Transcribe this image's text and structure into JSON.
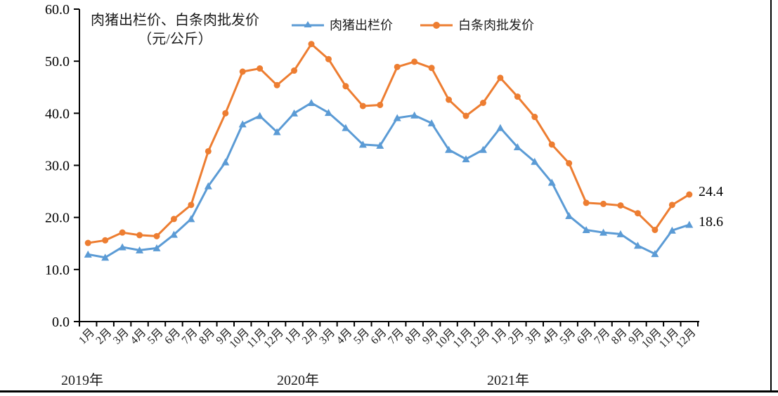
{
  "chart_data": {
    "type": "line",
    "title": "肉猪出栏价、白条肉批发价",
    "title_unit": "（元/公斤）",
    "x": [
      "1月",
      "2月",
      "3月",
      "4月",
      "5月",
      "6月",
      "7月",
      "8月",
      "9月",
      "10月",
      "11月",
      "12月",
      "1月",
      "2月",
      "3月",
      "4月",
      "5月",
      "6月",
      "7月",
      "8月",
      "9月",
      "10月",
      "11月",
      "12月",
      "1月",
      "2月",
      "3月",
      "4月",
      "5月",
      "6月",
      "7月",
      "8月",
      "9月",
      "10月",
      "11月",
      "12月"
    ],
    "year_labels": [
      "2019年",
      "2020年",
      "2021年"
    ],
    "yticks": [
      "0.0",
      "10.0",
      "20.0",
      "30.0",
      "40.0",
      "50.0",
      "60.0"
    ],
    "ylim": [
      0,
      60
    ],
    "grid": false,
    "legend_position": "top",
    "series": [
      {
        "name": "肉猪出栏价",
        "color": "#5B9BD5",
        "marker": "triangle",
        "end_label": "18.6",
        "values": [
          12.9,
          12.3,
          14.3,
          13.7,
          14.1,
          16.7,
          19.7,
          26.0,
          30.6,
          37.9,
          39.5,
          36.4,
          40.0,
          42.0,
          40.1,
          37.2,
          34.0,
          33.8,
          39.1,
          39.6,
          38.1,
          33.0,
          31.2,
          33.0,
          37.2,
          33.5,
          30.7,
          26.7,
          20.3,
          17.6,
          17.1,
          16.8,
          14.6,
          13.0,
          17.5,
          18.6
        ]
      },
      {
        "name": "白条肉批发价",
        "color": "#ED7D31",
        "marker": "circle",
        "end_label": "24.4",
        "values": [
          15.1,
          15.6,
          17.1,
          16.6,
          16.4,
          19.7,
          22.4,
          32.7,
          40.0,
          48.0,
          48.6,
          45.4,
          48.2,
          53.3,
          50.4,
          45.2,
          41.4,
          41.6,
          48.9,
          49.9,
          48.7,
          42.6,
          39.5,
          42.0,
          46.8,
          43.2,
          39.3,
          34.0,
          30.4,
          22.8,
          22.6,
          22.3,
          20.8,
          17.6,
          22.4,
          24.4
        ]
      }
    ],
    "axis_color": "#000000"
  }
}
